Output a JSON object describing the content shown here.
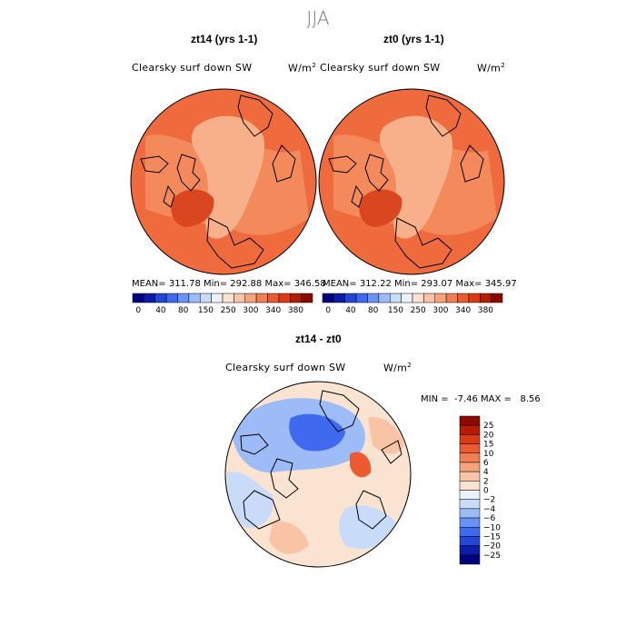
{
  "season": "JJA",
  "panels": [
    {
      "title": "zt14 (yrs 1-1)",
      "variable": "Clearsky surf down SW",
      "units_base": "W/m",
      "units_exp": "2",
      "stats": "MEAN= 311.78   Min= 292.88   Max= 346.58"
    },
    {
      "title": "zt0 (yrs 1-1)",
      "variable": "Clearsky surf down SW",
      "units_base": "W/m",
      "units_exp": "2",
      "stats": "MEAN= 312.22   Min= 293.07   Max= 345.97"
    }
  ],
  "colorbar_top": {
    "labels": [
      "0",
      "40",
      "80",
      "150",
      "250",
      "300",
      "340",
      "380"
    ],
    "colors": [
      "#00007f",
      "#0c1ca8",
      "#2446d6",
      "#3f6af0",
      "#6a92f5",
      "#9dbbf6",
      "#c8dcf9",
      "#ecf2fc",
      "#fbe3d2",
      "#f9c4a6",
      "#f6a27c",
      "#f27e54",
      "#ec5a30",
      "#dc3a12",
      "#b51c04",
      "#8a0a00"
    ]
  },
  "diff_panel": {
    "title": "zt14 - zt0",
    "variable": "Clearsky surf down SW",
    "units_base": "W/m",
    "units_exp": "2",
    "min_label": "MIN =",
    "min_value": "-7.46",
    "max_label": "MAX =",
    "max_value": "8.56"
  },
  "colorbar_diff": {
    "labels": [
      "25",
      "20",
      "15",
      "10",
      "6",
      "4",
      "2",
      "0",
      "−2",
      "−4",
      "−6",
      "−10",
      "−15",
      "−20",
      "−25"
    ],
    "colors": [
      "#8a0a00",
      "#b51c04",
      "#dc3a12",
      "#ec5a30",
      "#f27e54",
      "#f6a27c",
      "#f9c4a6",
      "#fbe3d2",
      "#ecf2fc",
      "#c8dcf9",
      "#9dbbf6",
      "#6a92f5",
      "#3f6af0",
      "#2446d6",
      "#0c1ca8",
      "#00007f"
    ]
  },
  "map_colors": {
    "ocean_top": "#ef6a3c",
    "ocean_top_light": "#f48a5c",
    "land_light": "#f7b08a",
    "land_dark": "#d9461f",
    "outline": "#000000"
  }
}
